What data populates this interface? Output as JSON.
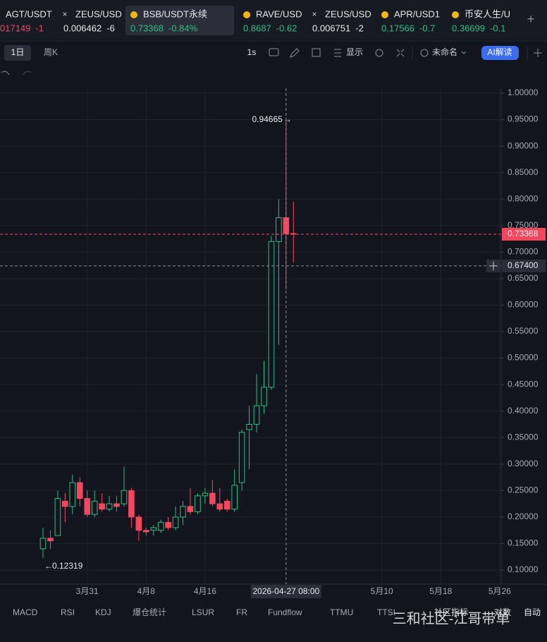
{
  "tabs": [
    {
      "symbol": "AGT/USDT",
      "price": "017149",
      "change": "-1",
      "active": false
    },
    {
      "symbol": "ZEUS/USD",
      "price": "0.006462",
      "change": "-6",
      "active": false
    },
    {
      "symbol": "BSB/USDT永续",
      "price": "0.73368",
      "change": "-0.84%",
      "active": true
    },
    {
      "symbol": "RAVE/USD",
      "price": "0.8687",
      "change": "-0.62",
      "active": false
    },
    {
      "symbol": "ZEUS/USD",
      "price": "0.006751",
      "change": "-2",
      "active": false
    },
    {
      "symbol": "APR/USD1",
      "price": "0.17566",
      "change": "-0.7",
      "active": false
    },
    {
      "symbol": "币安人生/U",
      "price": "0.36699",
      "change": "-0.1",
      "active": false
    }
  ],
  "toolbar": {
    "interval": "1日",
    "weekly": "周K",
    "seconds": "1s",
    "display": "显示",
    "layout": "未命名",
    "ai": "AI解读"
  },
  "indicators": [
    "MACD",
    "RSI",
    "KDJ",
    "爆仓统计",
    "LSUR",
    "FR",
    "Fundflow",
    "TTMU",
    "TTSI",
    "社区指标",
    "对数",
    "自动"
  ],
  "watermark": "三和社区-江哥带单",
  "chart": {
    "type": "candlestick",
    "ylim": [
      0.1,
      1.0
    ],
    "yticks": [
      {
        "value": 0.1,
        "label": "0.10000"
      },
      {
        "value": 0.15,
        "label": "0.15000"
      },
      {
        "value": 0.2,
        "label": "0.20000"
      },
      {
        "value": 0.25,
        "label": "0.25000"
      },
      {
        "value": 0.3,
        "label": "0.30000"
      },
      {
        "value": 0.35,
        "label": "0.35000"
      },
      {
        "value": 0.4,
        "label": "0.40000"
      },
      {
        "value": 0.45,
        "label": "0.45000"
      },
      {
        "value": 0.5,
        "label": "0.50000"
      },
      {
        "value": 0.55,
        "label": "0.55000"
      },
      {
        "value": 0.6,
        "label": "0.60000"
      },
      {
        "value": 0.65,
        "label": "0.65000"
      },
      {
        "value": 0.7,
        "label": "0.70000"
      },
      {
        "value": 0.75,
        "label": "0.75000"
      },
      {
        "value": 0.8,
        "label": "0.80000"
      },
      {
        "value": 0.85,
        "label": "0.85000"
      },
      {
        "value": 0.9,
        "label": "0.90000"
      },
      {
        "value": 0.95,
        "label": "0.95000"
      },
      {
        "value": 1.0,
        "label": "1.00000"
      }
    ],
    "categories": [
      null,
      null,
      null,
      null,
      null,
      null,
      "3月31",
      null,
      null,
      null,
      null,
      null,
      null,
      null,
      "4月8",
      null,
      null,
      null,
      null,
      null,
      null,
      null,
      "4月16",
      null,
      null,
      null,
      null,
      null,
      null,
      null,
      null,
      null,
      null,
      null,
      null,
      null,
      null,
      null,
      null,
      null,
      null,
      null,
      null,
      null,
      null,
      null,
      "5月10",
      null,
      null,
      null,
      null,
      null,
      null,
      null,
      "5月18",
      null,
      null,
      null,
      null,
      null,
      null,
      null,
      "5月26"
    ],
    "open": [
      0.14,
      0.16,
      0.165,
      0.23,
      0.22,
      0.265,
      0.235,
      0.205,
      0.225,
      0.215,
      0.225,
      0.225,
      0.25,
      0.2,
      0.175,
      0.175,
      0.175,
      0.19,
      0.18,
      0.2,
      0.22,
      0.21,
      0.24,
      0.245,
      0.225,
      0.23,
      0.215,
      0.265,
      0.365,
      0.375,
      0.41,
      0.445,
      0.72,
      0.765,
      0.735,
      null,
      null,
      null,
      null,
      null,
      null,
      null,
      null,
      null,
      null,
      null,
      null,
      null,
      null,
      null,
      null,
      null,
      null,
      null,
      null,
      null,
      null,
      null,
      null,
      null,
      null,
      null,
      null
    ],
    "high": [
      0.18,
      0.175,
      0.25,
      0.245,
      0.28,
      0.275,
      0.25,
      0.25,
      0.245,
      0.24,
      0.24,
      0.295,
      0.255,
      0.205,
      0.18,
      0.185,
      0.195,
      0.2,
      0.22,
      0.23,
      0.255,
      0.245,
      0.255,
      0.27,
      0.255,
      0.235,
      0.29,
      0.365,
      0.41,
      0.47,
      0.495,
      0.73,
      0.8,
      0.94665,
      0.795,
      null,
      null,
      null,
      null,
      null,
      null,
      null,
      null,
      null,
      null,
      null,
      null,
      null,
      null,
      null,
      null,
      null,
      null,
      null,
      null,
      null,
      null,
      null,
      null,
      null,
      null,
      null,
      null
    ],
    "low": [
      0.12319,
      0.14,
      0.165,
      0.19,
      0.205,
      0.22,
      0.2,
      0.2,
      0.21,
      0.21,
      0.21,
      0.22,
      0.18,
      0.155,
      0.165,
      0.165,
      0.17,
      0.175,
      0.175,
      0.185,
      0.205,
      0.205,
      0.225,
      0.22,
      0.21,
      0.21,
      0.21,
      0.25,
      0.29,
      0.36,
      0.395,
      0.44,
      0.525,
      0.63,
      0.68,
      null,
      null,
      null,
      null,
      null,
      null,
      null,
      null,
      null,
      null,
      null,
      null,
      null,
      null,
      null,
      null,
      null,
      null,
      null,
      null,
      null,
      null,
      null,
      null,
      null,
      null,
      null,
      null
    ],
    "close": [
      0.16,
      0.155,
      0.235,
      0.22,
      0.265,
      0.235,
      0.205,
      0.23,
      0.215,
      0.225,
      0.22,
      0.25,
      0.2,
      0.175,
      0.172,
      0.18,
      0.19,
      0.18,
      0.2,
      0.22,
      0.21,
      0.24,
      0.245,
      0.225,
      0.215,
      0.215,
      0.26,
      0.36,
      0.375,
      0.41,
      0.445,
      0.72,
      0.765,
      0.735,
      0.73368,
      null,
      null,
      null,
      null,
      null,
      null,
      null,
      null,
      null,
      null,
      null,
      null,
      null,
      null,
      null,
      null,
      null,
      null,
      null,
      null,
      null,
      null,
      null,
      null,
      null,
      null,
      null,
      null
    ],
    "up_color": "#2ebd85",
    "down_color": "#f6465d",
    "high_label": "0.94665",
    "low_label": "0.12319",
    "last_price": 0.73368,
    "last_price_label": "0.73368",
    "crosshair_price": 0.674,
    "crosshair_price_label": "0.67400",
    "crosshair_time": "2026-04-27 08:00",
    "crosshair_index": 33
  }
}
